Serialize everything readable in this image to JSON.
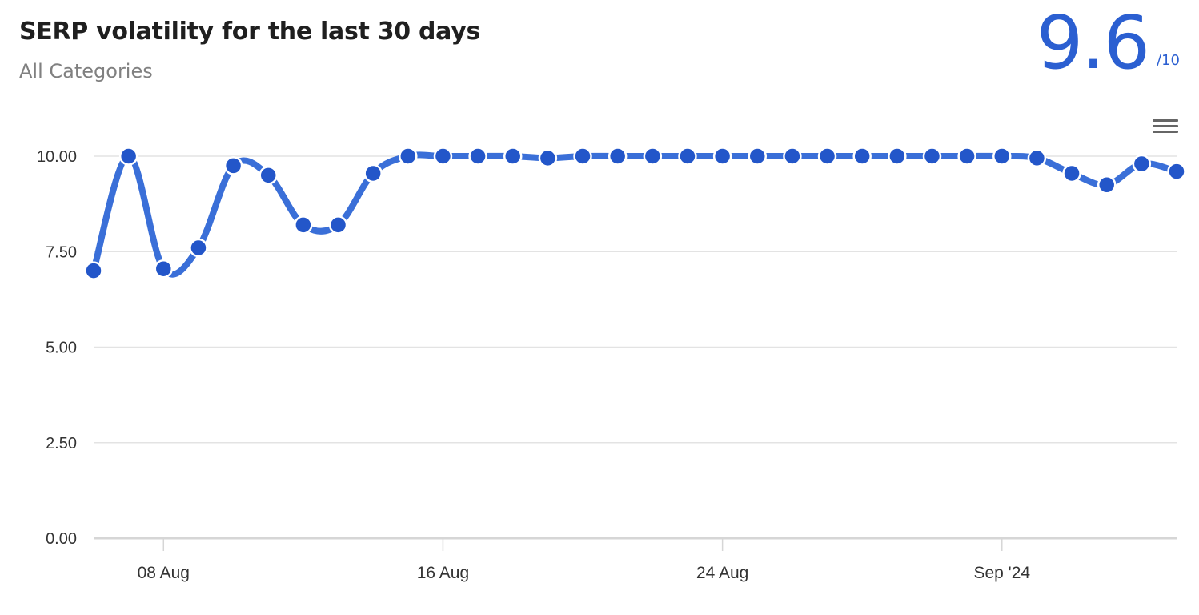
{
  "header": {
    "title": "SERP volatility for the last 30 days",
    "subtitle": "All Categories"
  },
  "score": {
    "value": "9.6",
    "max": "/10",
    "color": "#2b5fd1"
  },
  "menu": {
    "icon": "hamburger-menu-icon"
  },
  "chart_data": {
    "type": "line",
    "title": "",
    "xlabel": "",
    "ylabel": "",
    "ylim": [
      0,
      10
    ],
    "y_ticks": [
      "0.00",
      "2.50",
      "5.00",
      "7.50",
      "10.00"
    ],
    "x_ticks": [
      {
        "label": "08 Aug",
        "date": "2024-08-08"
      },
      {
        "label": "16 Aug",
        "date": "2024-08-16"
      },
      {
        "label": "24 Aug",
        "date": "2024-08-24"
      },
      {
        "label": "Sep '24",
        "date": "2024-09-01"
      }
    ],
    "grid": true,
    "legend": "none",
    "series": [
      {
        "color": "#3a6fd8",
        "marker_color": "#2356c9",
        "points": [
          {
            "x": "2024-08-06",
            "y": 7.0
          },
          {
            "x": "2024-08-07",
            "y": 10.0
          },
          {
            "x": "2024-08-08",
            "y": 7.05
          },
          {
            "x": "2024-08-09",
            "y": 7.6
          },
          {
            "x": "2024-08-10",
            "y": 9.75
          },
          {
            "x": "2024-08-11",
            "y": 9.5
          },
          {
            "x": "2024-08-12",
            "y": 8.2
          },
          {
            "x": "2024-08-13",
            "y": 8.2
          },
          {
            "x": "2024-08-14",
            "y": 9.55
          },
          {
            "x": "2024-08-15",
            "y": 10.0
          },
          {
            "x": "2024-08-16",
            "y": 10.0
          },
          {
            "x": "2024-08-17",
            "y": 10.0
          },
          {
            "x": "2024-08-18",
            "y": 10.0
          },
          {
            "x": "2024-08-19",
            "y": 9.95
          },
          {
            "x": "2024-08-20",
            "y": 10.0
          },
          {
            "x": "2024-08-21",
            "y": 10.0
          },
          {
            "x": "2024-08-22",
            "y": 10.0
          },
          {
            "x": "2024-08-23",
            "y": 10.0
          },
          {
            "x": "2024-08-24",
            "y": 10.0
          },
          {
            "x": "2024-08-25",
            "y": 10.0
          },
          {
            "x": "2024-08-26",
            "y": 10.0
          },
          {
            "x": "2024-08-27",
            "y": 10.0
          },
          {
            "x": "2024-08-28",
            "y": 10.0
          },
          {
            "x": "2024-08-29",
            "y": 10.0
          },
          {
            "x": "2024-08-30",
            "y": 10.0
          },
          {
            "x": "2024-08-31",
            "y": 10.0
          },
          {
            "x": "2024-09-01",
            "y": 10.0
          },
          {
            "x": "2024-09-02",
            "y": 9.95
          },
          {
            "x": "2024-09-03",
            "y": 9.55
          },
          {
            "x": "2024-09-04",
            "y": 9.25
          },
          {
            "x": "2024-09-05",
            "y": 9.8
          },
          {
            "x": "2024-09-06",
            "y": 9.6
          }
        ]
      }
    ]
  }
}
